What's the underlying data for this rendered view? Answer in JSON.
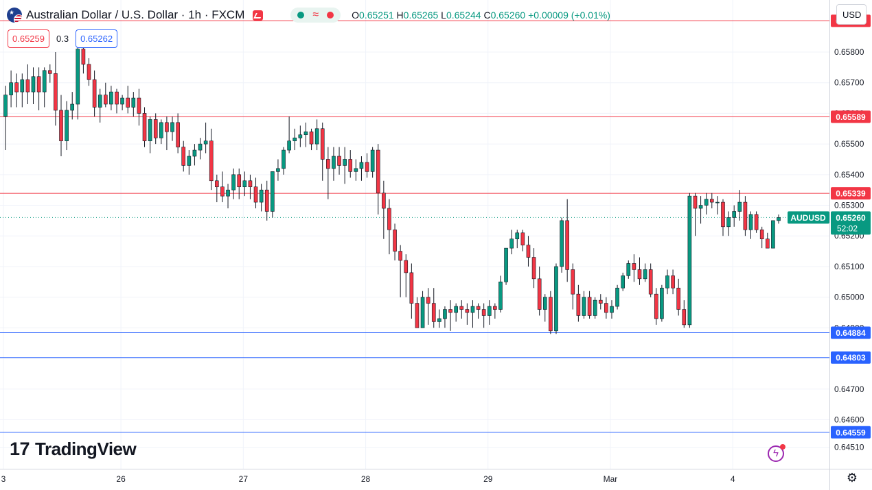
{
  "header": {
    "title": "Australian Dollar / U.S. Dollar · 1h · FXCM",
    "open_label": "O",
    "open": "0.65251",
    "high_label": "H",
    "high": "0.65265",
    "low_label": "L",
    "low": "0.65244",
    "close_label": "C",
    "close": "0.65260",
    "change": "+0.00009 (+0.01%)"
  },
  "trade": {
    "sell_price": "0.65259",
    "spread": "0.3",
    "buy_price": "0.65262"
  },
  "currency_button": "USD",
  "brand": "TradingView",
  "symbol_label": {
    "name": "AUDUSD",
    "price": "0.65260",
    "countdown": "52:02"
  },
  "colors": {
    "up": "#089981",
    "down": "#f23645",
    "resistance": "#f23645",
    "support": "#2962ff",
    "grid": "#f0f3fa"
  },
  "icons": {
    "flag": "au-us-flag-icon",
    "alert": "alert-icon",
    "settings": "gear-icon",
    "lightning": "lightning-icon"
  },
  "chart_data": {
    "type": "candlestick",
    "ylim": [
      0.6444,
      0.6597
    ],
    "y_ticks": [
      "0.64510",
      "0.64600",
      "0.64700",
      "0.64800",
      "0.64900",
      "0.65000",
      "0.65100",
      "0.65200",
      "0.65300",
      "0.65400",
      "0.65500",
      "0.65600",
      "0.65700",
      "0.65800"
    ],
    "x_tick_labels": [
      "3",
      "26",
      "27",
      "28",
      "29",
      "Mar",
      "4"
    ],
    "last_price": 0.6526,
    "horizontal_levels": [
      {
        "label": "0.65902",
        "value": 0.65902,
        "kind": "resistance"
      },
      {
        "label": "0.65589",
        "value": 0.65589,
        "kind": "resistance"
      },
      {
        "label": "0.65339",
        "value": 0.65339,
        "kind": "resistance"
      },
      {
        "label": "0.64884",
        "value": 0.64884,
        "kind": "support"
      },
      {
        "label": "0.64803",
        "value": 0.64803,
        "kind": "support"
      },
      {
        "label": "0.64559",
        "value": 0.64559,
        "kind": "support"
      }
    ],
    "candles": [
      [
        0.6559,
        0.6569,
        0.6548,
        0.6566
      ],
      [
        0.6566,
        0.6574,
        0.6562,
        0.657
      ],
      [
        0.657,
        0.6573,
        0.6562,
        0.6567
      ],
      [
        0.6567,
        0.6573,
        0.6562,
        0.6571
      ],
      [
        0.6571,
        0.6576,
        0.6563,
        0.6567
      ],
      [
        0.6567,
        0.6575,
        0.6563,
        0.6572
      ],
      [
        0.6572,
        0.6575,
        0.6561,
        0.6567
      ],
      [
        0.6567,
        0.6575,
        0.6562,
        0.6574
      ],
      [
        0.6574,
        0.6576,
        0.657,
        0.6573
      ],
      [
        0.6573,
        0.658,
        0.6556,
        0.6561
      ],
      [
        0.6561,
        0.6566,
        0.6546,
        0.6551
      ],
      [
        0.6551,
        0.6564,
        0.6548,
        0.6561
      ],
      [
        0.6561,
        0.6567,
        0.6558,
        0.6563
      ],
      [
        0.6563,
        0.6583,
        0.6558,
        0.6581
      ],
      [
        0.6581,
        0.6584,
        0.6573,
        0.6576
      ],
      [
        0.6576,
        0.6578,
        0.6569,
        0.6571
      ],
      [
        0.6571,
        0.6574,
        0.6559,
        0.6562
      ],
      [
        0.6562,
        0.6568,
        0.6557,
        0.6566
      ],
      [
        0.6566,
        0.657,
        0.6562,
        0.6563
      ],
      [
        0.6563,
        0.6569,
        0.6561,
        0.6567
      ],
      [
        0.6567,
        0.6568,
        0.656,
        0.6563
      ],
      [
        0.6563,
        0.6566,
        0.6561,
        0.6565
      ],
      [
        0.6565,
        0.6569,
        0.656,
        0.6562
      ],
      [
        0.6562,
        0.6567,
        0.6559,
        0.6565
      ],
      [
        0.6565,
        0.6568,
        0.6556,
        0.656
      ],
      [
        0.656,
        0.6562,
        0.6549,
        0.6551
      ],
      [
        0.6551,
        0.6559,
        0.6547,
        0.6558
      ],
      [
        0.6558,
        0.656,
        0.655,
        0.6552
      ],
      [
        0.6552,
        0.6558,
        0.655,
        0.6557
      ],
      [
        0.6557,
        0.6559,
        0.6548,
        0.6554
      ],
      [
        0.6554,
        0.6559,
        0.6551,
        0.6557
      ],
      [
        0.6557,
        0.656,
        0.6547,
        0.6549
      ],
      [
        0.6549,
        0.6551,
        0.6541,
        0.6543
      ],
      [
        0.6543,
        0.6548,
        0.654,
        0.6546
      ],
      [
        0.6546,
        0.655,
        0.6543,
        0.6548
      ],
      [
        0.6548,
        0.6552,
        0.6545,
        0.655
      ],
      [
        0.655,
        0.6557,
        0.6547,
        0.6551
      ],
      [
        0.6551,
        0.6555,
        0.6535,
        0.6538
      ],
      [
        0.6538,
        0.654,
        0.6531,
        0.6536
      ],
      [
        0.6536,
        0.6541,
        0.6531,
        0.6533
      ],
      [
        0.6533,
        0.6537,
        0.6529,
        0.6535
      ],
      [
        0.6535,
        0.6542,
        0.6532,
        0.654
      ],
      [
        0.654,
        0.6542,
        0.6532,
        0.6536
      ],
      [
        0.6536,
        0.6541,
        0.6533,
        0.6538
      ],
      [
        0.6538,
        0.654,
        0.6532,
        0.6536
      ],
      [
        0.6536,
        0.6539,
        0.6529,
        0.6531
      ],
      [
        0.6531,
        0.6537,
        0.6528,
        0.6535
      ],
      [
        0.6535,
        0.6538,
        0.6525,
        0.6528
      ],
      [
        0.6528,
        0.6541,
        0.6526,
        0.6541
      ],
      [
        0.6541,
        0.6545,
        0.6538,
        0.6542
      ],
      [
        0.6542,
        0.6549,
        0.654,
        0.6548
      ],
      [
        0.6548,
        0.6559,
        0.6547,
        0.6551
      ],
      [
        0.6551,
        0.6555,
        0.6548,
        0.6552
      ],
      [
        0.6552,
        0.6556,
        0.6549,
        0.6553
      ],
      [
        0.6553,
        0.6557,
        0.6549,
        0.6554
      ],
      [
        0.6554,
        0.6555,
        0.6548,
        0.655
      ],
      [
        0.655,
        0.6558,
        0.6548,
        0.6555
      ],
      [
        0.6555,
        0.6557,
        0.6538,
        0.6545
      ],
      [
        0.6545,
        0.6549,
        0.6532,
        0.6542
      ],
      [
        0.6542,
        0.6549,
        0.6538,
        0.6546
      ],
      [
        0.6546,
        0.6549,
        0.654,
        0.6543
      ],
      [
        0.6543,
        0.6549,
        0.6537,
        0.6545
      ],
      [
        0.6545,
        0.6548,
        0.6539,
        0.6541
      ],
      [
        0.6541,
        0.6545,
        0.6538,
        0.6542
      ],
      [
        0.6542,
        0.6546,
        0.6538,
        0.6544
      ],
      [
        0.6544,
        0.6547,
        0.6539,
        0.6541
      ],
      [
        0.6541,
        0.6549,
        0.6539,
        0.6548
      ],
      [
        0.6548,
        0.655,
        0.6527,
        0.6534
      ],
      [
        0.6534,
        0.6538,
        0.6519,
        0.6529
      ],
      [
        0.6529,
        0.6532,
        0.6514,
        0.6522
      ],
      [
        0.6522,
        0.6524,
        0.6512,
        0.6515
      ],
      [
        0.6515,
        0.6517,
        0.65,
        0.6512
      ],
      [
        0.6512,
        0.6514,
        0.65,
        0.6508
      ],
      [
        0.6508,
        0.6511,
        0.6493,
        0.6498
      ],
      [
        0.6498,
        0.65,
        0.649,
        0.649
      ],
      [
        0.649,
        0.6502,
        0.649,
        0.65
      ],
      [
        0.65,
        0.6503,
        0.6491,
        0.6498
      ],
      [
        0.6498,
        0.6503,
        0.649,
        0.6492
      ],
      [
        0.6492,
        0.6496,
        0.649,
        0.6493
      ],
      [
        0.6493,
        0.6497,
        0.649,
        0.6496
      ],
      [
        0.6496,
        0.6499,
        0.6489,
        0.6495
      ],
      [
        0.6495,
        0.6498,
        0.6492,
        0.6497
      ],
      [
        0.6497,
        0.6499,
        0.6493,
        0.6496
      ],
      [
        0.6496,
        0.6498,
        0.6491,
        0.6495
      ],
      [
        0.6495,
        0.6499,
        0.649,
        0.6497
      ],
      [
        0.6497,
        0.6498,
        0.6493,
        0.6496
      ],
      [
        0.6496,
        0.6498,
        0.649,
        0.6494
      ],
      [
        0.6494,
        0.6499,
        0.6491,
        0.6497
      ],
      [
        0.6497,
        0.6498,
        0.6493,
        0.6496
      ],
      [
        0.6496,
        0.6507,
        0.6495,
        0.6505
      ],
      [
        0.6505,
        0.6516,
        0.6504,
        0.6516
      ],
      [
        0.6516,
        0.6522,
        0.6514,
        0.6519
      ],
      [
        0.6519,
        0.6522,
        0.6516,
        0.6521
      ],
      [
        0.6521,
        0.6522,
        0.6515,
        0.6517
      ],
      [
        0.6517,
        0.652,
        0.651,
        0.6513
      ],
      [
        0.6513,
        0.6516,
        0.6503,
        0.6506
      ],
      [
        0.6506,
        0.651,
        0.6494,
        0.6496
      ],
      [
        0.6496,
        0.6501,
        0.6492,
        0.65
      ],
      [
        0.65,
        0.6502,
        0.6488,
        0.6489
      ],
      [
        0.6489,
        0.6511,
        0.6488,
        0.651
      ],
      [
        0.651,
        0.6526,
        0.6508,
        0.6525
      ],
      [
        0.6525,
        0.6532,
        0.6505,
        0.6509
      ],
      [
        0.6509,
        0.6511,
        0.6496,
        0.6501
      ],
      [
        0.6501,
        0.6504,
        0.6492,
        0.6494
      ],
      [
        0.6494,
        0.6502,
        0.6493,
        0.65
      ],
      [
        0.65,
        0.6502,
        0.6493,
        0.6494
      ],
      [
        0.6494,
        0.65,
        0.6493,
        0.6499
      ],
      [
        0.6499,
        0.6501,
        0.6496,
        0.6498
      ],
      [
        0.6498,
        0.65,
        0.6493,
        0.6495
      ],
      [
        0.6495,
        0.6499,
        0.6493,
        0.6497
      ],
      [
        0.6497,
        0.6504,
        0.6496,
        0.6503
      ],
      [
        0.6503,
        0.6508,
        0.6502,
        0.6507
      ],
      [
        0.6507,
        0.6512,
        0.6506,
        0.6511
      ],
      [
        0.6511,
        0.6514,
        0.6505,
        0.6509
      ],
      [
        0.6509,
        0.6513,
        0.6504,
        0.6506
      ],
      [
        0.6506,
        0.6511,
        0.6505,
        0.6509
      ],
      [
        0.6509,
        0.6511,
        0.65,
        0.6501
      ],
      [
        0.6501,
        0.6503,
        0.6491,
        0.6493
      ],
      [
        0.6493,
        0.6504,
        0.6492,
        0.6503
      ],
      [
        0.6503,
        0.6509,
        0.6501,
        0.6507
      ],
      [
        0.6507,
        0.6509,
        0.6501,
        0.6503
      ],
      [
        0.6503,
        0.6506,
        0.6494,
        0.6496
      ],
      [
        0.6496,
        0.6499,
        0.649,
        0.6491
      ],
      [
        0.6491,
        0.6534,
        0.649,
        0.6533
      ],
      [
        0.6533,
        0.6534,
        0.652,
        0.6529
      ],
      [
        0.6529,
        0.6533,
        0.6524,
        0.653
      ],
      [
        0.653,
        0.6534,
        0.6527,
        0.6532
      ],
      [
        0.6532,
        0.6534,
        0.6529,
        0.6531
      ],
      [
        0.6531,
        0.6533,
        0.6527,
        0.6531
      ],
      [
        0.6531,
        0.6532,
        0.652,
        0.6523
      ],
      [
        0.6523,
        0.6528,
        0.652,
        0.6526
      ],
      [
        0.6526,
        0.653,
        0.6523,
        0.6528
      ],
      [
        0.6528,
        0.6535,
        0.6525,
        0.6531
      ],
      [
        0.6531,
        0.6533,
        0.652,
        0.6522
      ],
      [
        0.6522,
        0.6528,
        0.6519,
        0.6527
      ],
      [
        0.6527,
        0.6528,
        0.6521,
        0.6522
      ],
      [
        0.6522,
        0.6523,
        0.6516,
        0.6519
      ],
      [
        0.6519,
        0.6521,
        0.6516,
        0.6516
      ],
      [
        0.6516,
        0.6525,
        0.6516,
        0.6525
      ],
      [
        0.6525,
        0.6527,
        0.6524,
        0.6526
      ]
    ]
  }
}
